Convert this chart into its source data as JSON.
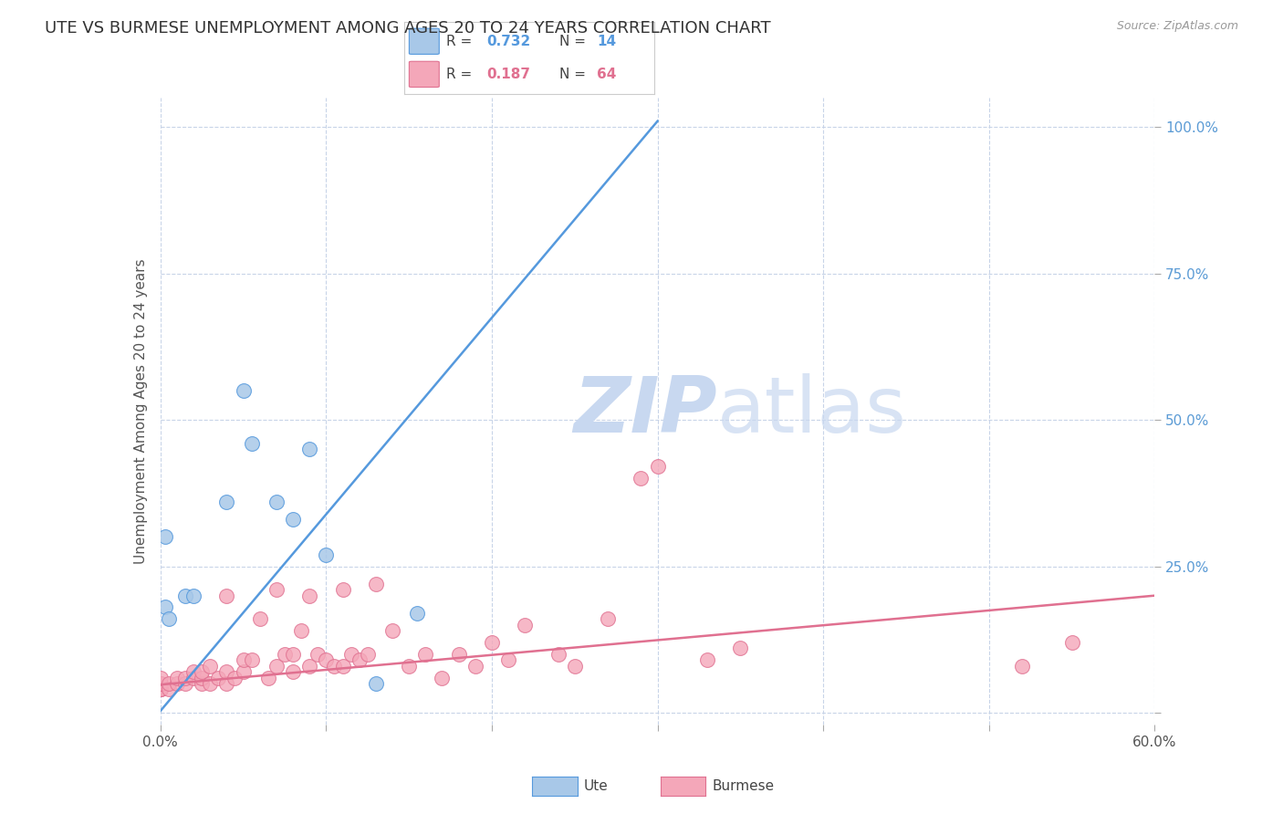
{
  "title": "UTE VS BURMESE UNEMPLOYMENT AMONG AGES 20 TO 24 YEARS CORRELATION CHART",
  "source": "Source: ZipAtlas.com",
  "ylabel": "Unemployment Among Ages 20 to 24 years",
  "xlim": [
    0.0,
    0.6
  ],
  "ylim": [
    -0.02,
    1.05
  ],
  "xticks": [
    0.0,
    0.1,
    0.2,
    0.3,
    0.4,
    0.5,
    0.6
  ],
  "xticklabels": [
    "0.0%",
    "",
    "",
    "",
    "",
    "",
    "60.0%"
  ],
  "yticks": [
    0.0,
    0.25,
    0.5,
    0.75,
    1.0
  ],
  "yticklabels": [
    "",
    "25.0%",
    "50.0%",
    "75.0%",
    "100.0%"
  ],
  "ute_color": "#a8c8e8",
  "ute_line_color": "#5599dd",
  "burmese_color": "#f4a7b9",
  "burmese_line_color": "#e07090",
  "watermark_color": "#c8d8f0",
  "background_color": "#ffffff",
  "grid_color": "#c8d4e8",
  "title_fontsize": 13,
  "axis_label_fontsize": 11,
  "tick_label_color_right": "#5b9bd5",
  "ute_x": [
    0.003,
    0.003,
    0.005,
    0.015,
    0.02,
    0.04,
    0.05,
    0.055,
    0.07,
    0.08,
    0.09,
    0.1,
    0.13,
    0.155
  ],
  "ute_y": [
    0.3,
    0.18,
    0.16,
    0.2,
    0.2,
    0.36,
    0.55,
    0.46,
    0.36,
    0.33,
    0.45,
    0.27,
    0.05,
    0.17
  ],
  "burmese_x": [
    0.0,
    0.0,
    0.0,
    0.0,
    0.0,
    0.0,
    0.005,
    0.005,
    0.01,
    0.01,
    0.015,
    0.015,
    0.02,
    0.02,
    0.025,
    0.025,
    0.025,
    0.03,
    0.03,
    0.035,
    0.04,
    0.04,
    0.04,
    0.045,
    0.05,
    0.05,
    0.055,
    0.06,
    0.065,
    0.07,
    0.07,
    0.075,
    0.08,
    0.08,
    0.085,
    0.09,
    0.09,
    0.095,
    0.1,
    0.105,
    0.11,
    0.11,
    0.115,
    0.12,
    0.125,
    0.13,
    0.14,
    0.15,
    0.16,
    0.17,
    0.18,
    0.19,
    0.2,
    0.21,
    0.22,
    0.24,
    0.25,
    0.27,
    0.29,
    0.3,
    0.33,
    0.35,
    0.52,
    0.55
  ],
  "burmese_y": [
    0.04,
    0.04,
    0.04,
    0.05,
    0.05,
    0.06,
    0.04,
    0.05,
    0.05,
    0.06,
    0.05,
    0.06,
    0.06,
    0.07,
    0.05,
    0.06,
    0.07,
    0.05,
    0.08,
    0.06,
    0.05,
    0.07,
    0.2,
    0.06,
    0.07,
    0.09,
    0.09,
    0.16,
    0.06,
    0.08,
    0.21,
    0.1,
    0.07,
    0.1,
    0.14,
    0.08,
    0.2,
    0.1,
    0.09,
    0.08,
    0.08,
    0.21,
    0.1,
    0.09,
    0.1,
    0.22,
    0.14,
    0.08,
    0.1,
    0.06,
    0.1,
    0.08,
    0.12,
    0.09,
    0.15,
    0.1,
    0.08,
    0.16,
    0.4,
    0.42,
    0.09,
    0.11,
    0.08,
    0.12
  ],
  "ute_line_x": [
    0.0,
    0.3
  ],
  "ute_line_y": [
    0.003,
    1.01
  ],
  "bur_line_x": [
    0.0,
    0.6
  ],
  "bur_line_y": [
    0.048,
    0.2
  ]
}
